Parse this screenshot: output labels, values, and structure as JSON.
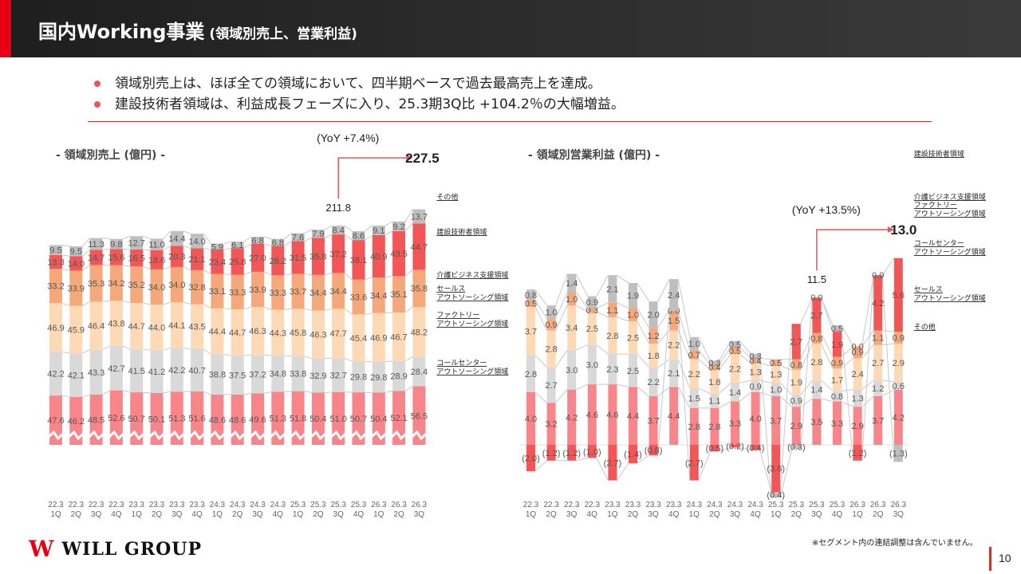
{
  "header": {
    "title_main": "国内Working事業",
    "title_sub": " (領域別売上、営業利益)"
  },
  "bullets": [
    "領域別売上は、ほぼ全ての領域において、四半期ベースで過去最高売上を達成。",
    "建設技術者領域は、利益成長フェーズに入り、25.3期3Q比 +104.2％の大幅増益。"
  ],
  "colors": {
    "sales": "#f8858a",
    "callcenter": "#d9d9d9",
    "factory": "#fdd9b5",
    "care": "#f5a97a",
    "construction": "#f25656",
    "other": "#bfbfbf",
    "arrow": "#e8555a"
  },
  "chart_data": [
    {
      "type": "bar",
      "stacked": true,
      "title": "- 領域別売上 (億円) -",
      "categories": [
        "22.3\n1Q",
        "22.3\n2Q",
        "22.3\n3Q",
        "22.3\n4Q",
        "23.3\n1Q",
        "23.3\n2Q",
        "23.3\n3Q",
        "23.3\n4Q",
        "24.3\n1Q",
        "24.3\n2Q",
        "24.3\n3Q",
        "24.3\n4Q",
        "25.3\n1Q",
        "25.3\n2Q",
        "25.3\n3Q",
        "25.3\n4Q",
        "26.3\n1Q",
        "26.3\n2Q",
        "26.3\n3Q"
      ],
      "series": [
        {
          "name": "セールス\nアウトソーシング領域",
          "key": "sales",
          "values": [
            47.6,
            46.2,
            48.5,
            52.6,
            50.7,
            50.1,
            51.3,
            51.6,
            48.6,
            48.6,
            49.6,
            51.3,
            51.8,
            50.4,
            51.0,
            50.7,
            50.4,
            52.1,
            56.5
          ]
        },
        {
          "name": "コールセンター\nアウトソーシング領域",
          "key": "callcenter",
          "values": [
            42.2,
            42.1,
            43.3,
            42.7,
            41.5,
            41.2,
            42.2,
            40.7,
            38.8,
            37.5,
            37.2,
            34.8,
            33.8,
            32.9,
            32.7,
            29.8,
            29.8,
            28.9,
            28.4
          ]
        },
        {
          "name": "ファクトリー\nアウトソーシング領域",
          "key": "factory",
          "values": [
            46.9,
            45.9,
            46.4,
            43.8,
            44.7,
            44.0,
            44.1,
            43.5,
            44.4,
            44.7,
            46.3,
            44.3,
            45.8,
            46.3,
            47.7,
            45.4,
            46.9,
            46.7,
            48.2
          ]
        },
        {
          "name": "介護ビジネス支援領域",
          "key": "care",
          "values": [
            33.2,
            33.9,
            35.3,
            34.2,
            35.2,
            34.0,
            34.0,
            32.8,
            33.1,
            33.3,
            33.9,
            33.3,
            33.7,
            34.4,
            34.4,
            33.6,
            34.4,
            35.1,
            35.8
          ]
        },
        {
          "name": "建設技術者領域",
          "key": "construction",
          "values": [
            13.3,
            14.0,
            14.7,
            15.6,
            16.5,
            18.6,
            20.3,
            21.1,
            23.4,
            25.8,
            27.0,
            28.2,
            31.5,
            35.8,
            37.2,
            38.1,
            40.9,
            43.5,
            44.7
          ]
        },
        {
          "name": "その他",
          "key": "other",
          "values": [
            9.5,
            9.5,
            11.3,
            9.8,
            12.7,
            11.0,
            14.4,
            14.0,
            5.9,
            6.1,
            6.8,
            6.8,
            7.6,
            7.9,
            8.4,
            8.6,
            9.1,
            9.2,
            13.7
          ]
        }
      ],
      "annotation": {
        "from_label": "211.8",
        "to_label": "227.5",
        "yoy": "(YoY +7.4%)",
        "from_index": 14,
        "to_index": 18
      },
      "axis_break": true
    },
    {
      "type": "bar",
      "stacked": true,
      "title": "- 領域別営業利益 (億円) -",
      "categories": [
        "22.3\n1Q",
        "22.3\n2Q",
        "22.3\n3Q",
        "22.3\n4Q",
        "23.3\n1Q",
        "23.3\n2Q",
        "23.3\n3Q",
        "23.3\n4Q",
        "24.3\n1Q",
        "24.3\n2Q",
        "24.3\n3Q",
        "24.3\n4Q",
        "25.3\n1Q",
        "25.3\n2Q",
        "25.3\n3Q",
        "25.3\n4Q",
        "26.3\n1Q",
        "26.3\n2Q",
        "26.3\n3Q"
      ],
      "series": [
        {
          "name": "セールス\nアウトソーシング領域",
          "key": "sales",
          "values": [
            4.0,
            3.2,
            4.2,
            4.6,
            4.6,
            4.4,
            3.7,
            4.4,
            2.8,
            2.8,
            3.3,
            4.0,
            3.7,
            2.9,
            3.5,
            3.3,
            2.9,
            3.7,
            4.2
          ]
        },
        {
          "name": "コールセンター\nアウトソーシング領域",
          "key": "callcenter",
          "values": [
            2.8,
            2.7,
            3.0,
            3.0,
            2.3,
            2.5,
            2.2,
            2.1,
            1.5,
            1.1,
            1.4,
            0.9,
            1.0,
            0.9,
            1.4,
            0.8,
            1.3,
            1.2,
            0.6
          ]
        },
        {
          "name": "ファクトリー\nアウトソーシング領域",
          "key": "factory",
          "values": [
            3.7,
            2.8,
            3.4,
            2.5,
            2.8,
            2.5,
            1.8,
            2.2,
            2.2,
            1.8,
            2.2,
            1.3,
            1.3,
            1.9,
            2.8,
            1.7,
            2.4,
            2.7,
            2.9
          ]
        },
        {
          "name": "介護ビジネス支援領域",
          "key": "care",
          "values": [
            0.5,
            0.9,
            1.0,
            0.3,
            1.1,
            1.0,
            1.2,
            1.5,
            0.7,
            0.4,
            0.5,
            0.4,
            0.5,
            0.8,
            0.8,
            0.9,
            0.9,
            1.1,
            0.9
          ]
        },
        {
          "name": "建設技術者領域",
          "key": "construction",
          "values": [
            -2.0,
            -1.2,
            -1.2,
            -1.0,
            -2.7,
            -1.4,
            -0.8,
            0.0,
            -2.7,
            -0.5,
            -0.2,
            -0.4,
            -3.6,
            2.7,
            2.7,
            1.9,
            -1.2,
            4.2,
            5.6
          ]
        },
        {
          "name": "その他",
          "key": "other",
          "values": [
            0.8,
            1.0,
            1.4,
            0.9,
            2.1,
            1.9,
            2.0,
            2.4,
            1.0,
            0.3,
            0.5,
            0.3,
            -0.4,
            -0.3,
            0.0,
            0.5,
            0.0,
            0.0,
            -1.3
          ]
        }
      ],
      "annotation": {
        "from_label": "11.5",
        "to_label": "13.0",
        "yoy": "(YoY +13.5%)",
        "from_index": 14,
        "to_index": 18
      }
    }
  ],
  "footer": {
    "note": "※セグメント内の連結調整は含んでいません。",
    "logo_text": "WILL GROUP",
    "page_number": "10"
  }
}
